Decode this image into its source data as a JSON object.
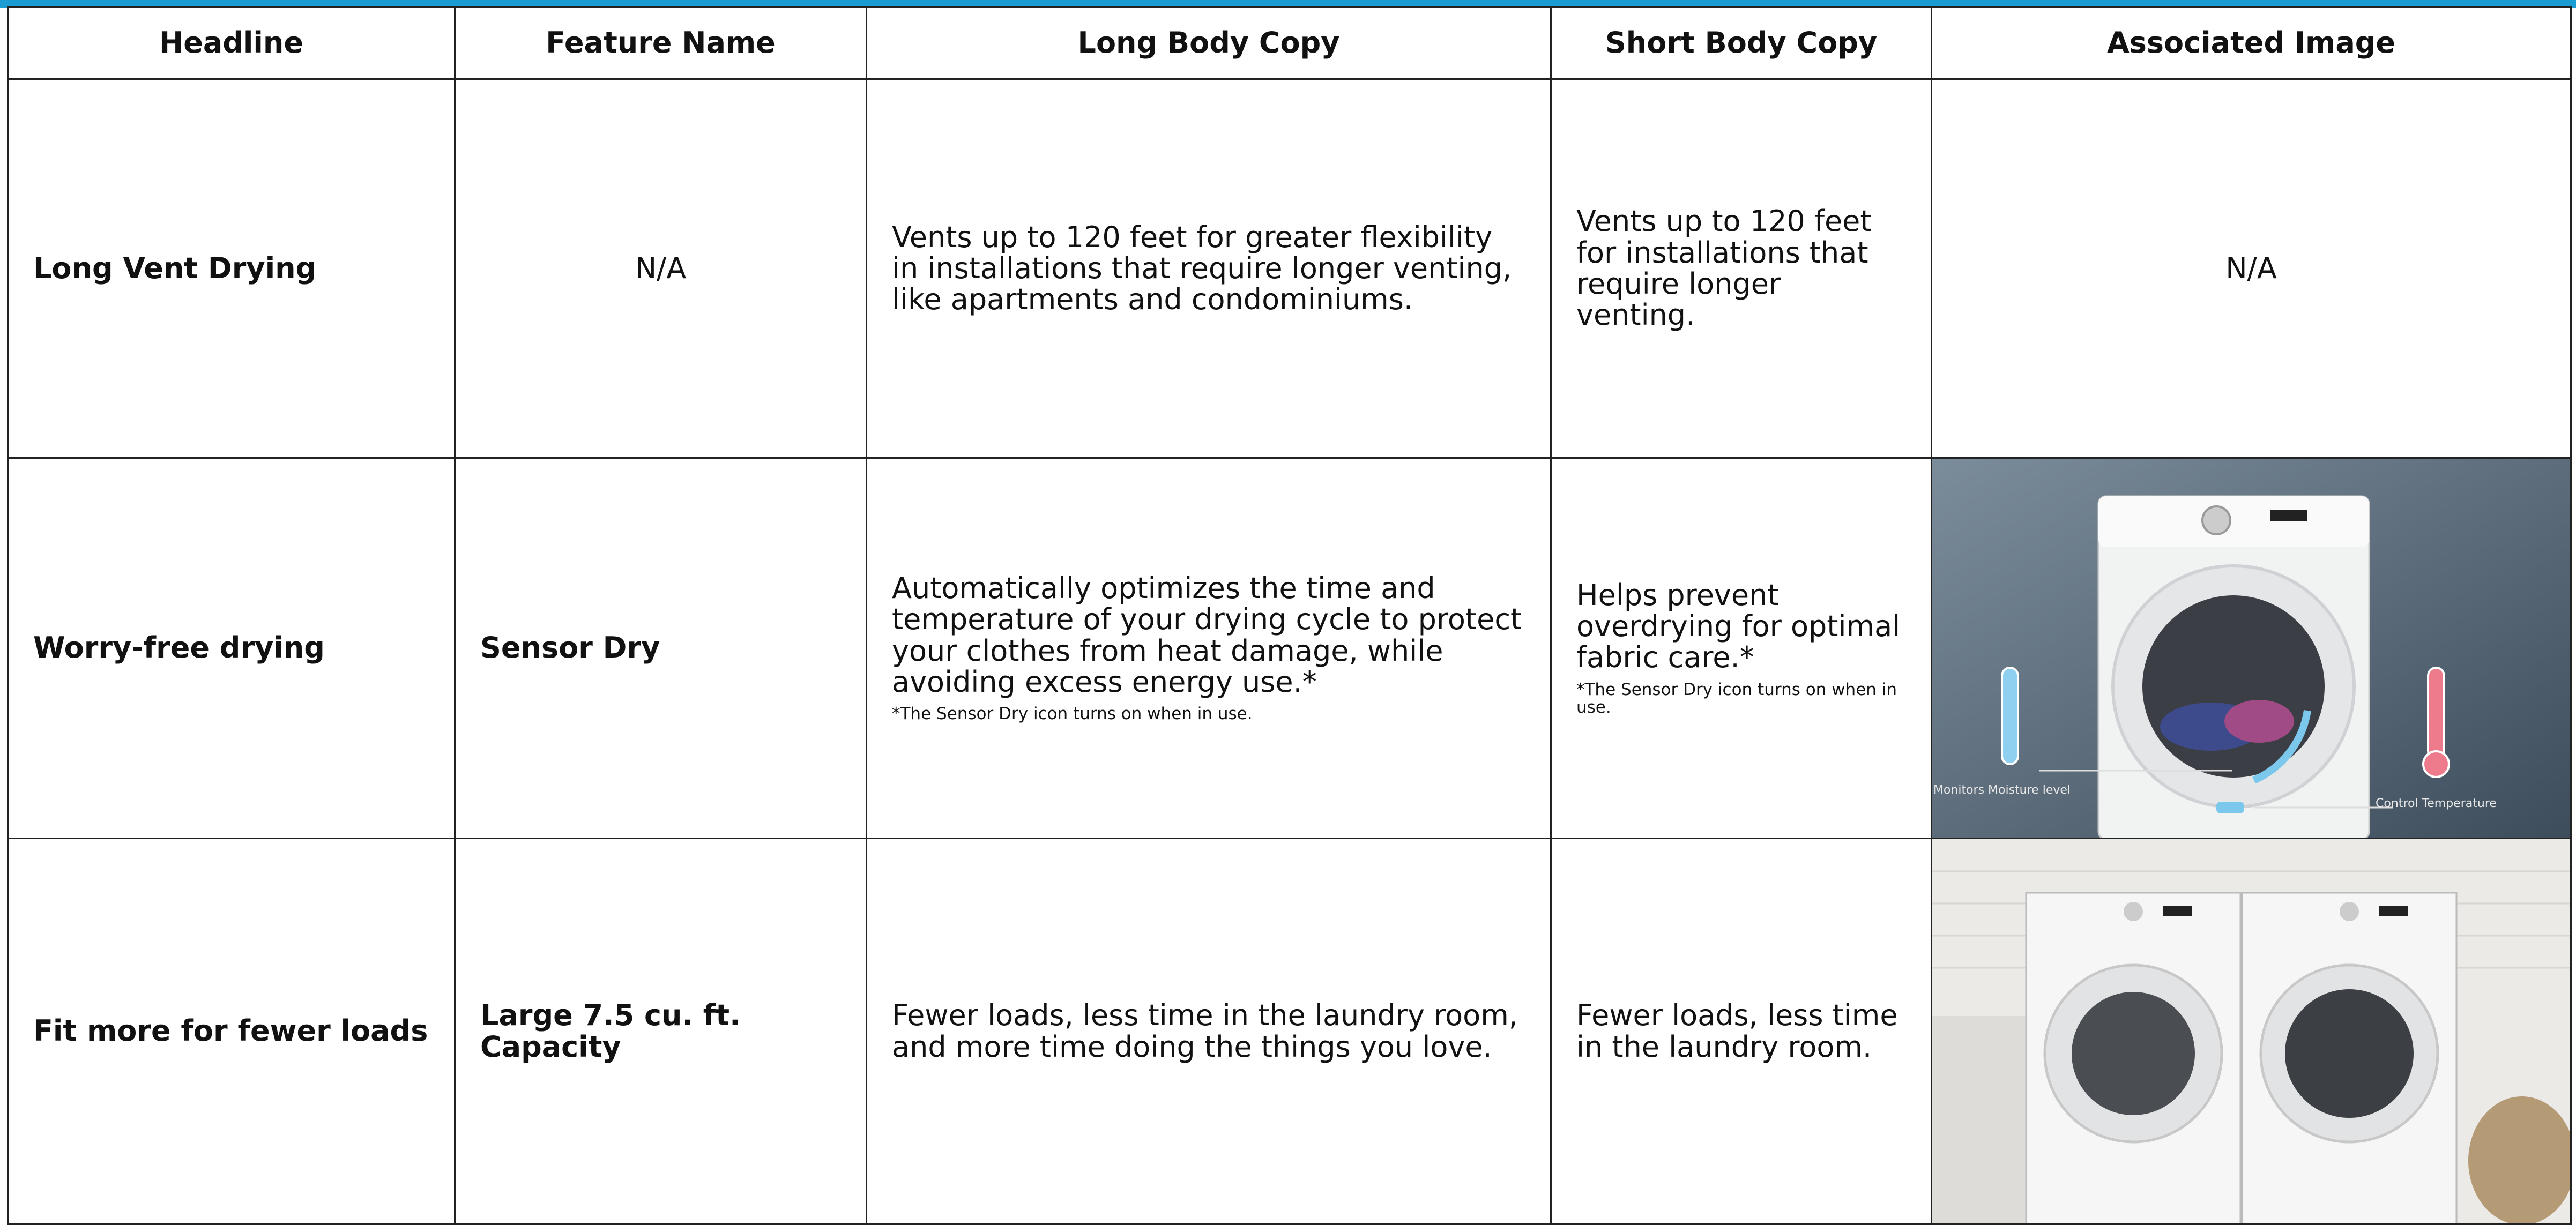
{
  "table": {
    "header": [
      "Headline",
      "Feature Name",
      "Long Body Copy",
      "Short Body Copy",
      "Associated Image"
    ],
    "rows": [
      {
        "headline": "Long Vent Drying",
        "feature_name": "N/A",
        "long_body_copy": "Vents up to 120 feet for greater flexibility in installations that require longer venting, like apartments and condominiums.",
        "short_body_copy": "Vents up to 120 feet for installations that require longer venting.",
        "associated_image": "N/A"
      },
      {
        "headline": "Worry-free drying",
        "feature_name": "Sensor Dry",
        "long_body_copy": "Automatically optimizes the time and temperature of your drying cycle to protect your clothes from heat damage, while avoiding excess energy use.*",
        "long_note": "*The Sensor Dry icon turns on when in use.",
        "short_body_copy": "Helps prevent overdrying for optimal fabric care.*",
        "short_note": "*The Sensor Dry icon turns on when in use.",
        "image_labels": [
          "Monitors Moisture level",
          "Control Temperature"
        ]
      },
      {
        "headline": "Fit more for fewer loads",
        "feature_name": "Large 7.5 cu. ft. Capacity",
        "long_body_copy": "Fewer loads, less time in the laundry room, and more time doing the things you love.",
        "short_body_copy": "Fewer loads, less time in the laundry room."
      }
    ]
  }
}
